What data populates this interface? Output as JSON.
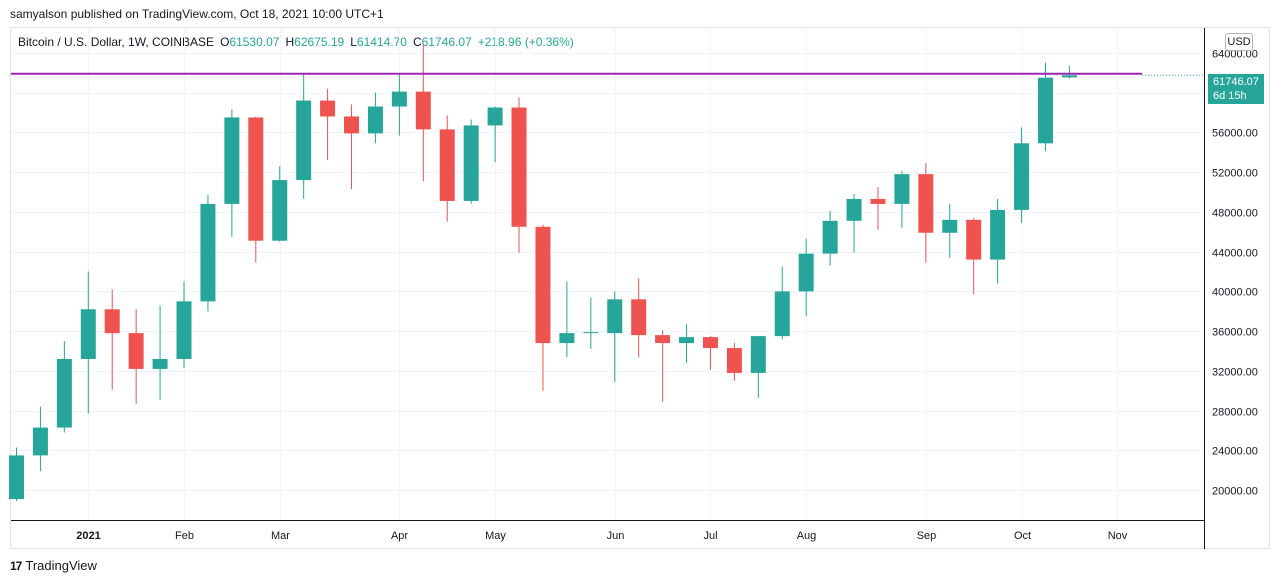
{
  "header": {
    "publisher": "samyalson",
    "caption": "samyalson published on TradingView.com, Oct 18, 2021 10:00 UTC+1"
  },
  "legend": {
    "symbol": "Bitcoin / U.S. Dollar, 1W, COINBASE",
    "open_label": "O",
    "open": "61530.07",
    "high_label": "H",
    "high": "62675.19",
    "low_label": "L",
    "low": "61414.70",
    "close_label": "C",
    "close": "61746.07",
    "change": "+218.96 (+0.36%)"
  },
  "price_axis": {
    "currency": "USD"
  },
  "last_price": {
    "value": "61746.07",
    "countdown": "6d 15h"
  },
  "footer": {
    "brand": "TradingView",
    "logo_glyph": "17"
  },
  "colors": {
    "up": "#26a69a",
    "down": "#ef5350",
    "resistance": "#9c27b0"
  },
  "chart_data": {
    "type": "candlestick",
    "ylim": [
      17000,
      66500
    ],
    "y_ticks": [
      20000,
      24000,
      28000,
      32000,
      36000,
      40000,
      44000,
      48000,
      52000,
      56000,
      60000,
      64000
    ],
    "y_tick_labels": [
      "20000.00",
      "24000.00",
      "28000.00",
      "32000.00",
      "36000.00",
      "40000.00",
      "44000.00",
      "48000.00",
      "52000.00",
      "56000.00",
      "60000.00",
      "64000.00"
    ],
    "x_labels": [
      {
        "label": "2021",
        "index": 3,
        "bold": true
      },
      {
        "label": "Feb",
        "index": 7
      },
      {
        "label": "Mar",
        "index": 11
      },
      {
        "label": "Apr",
        "index": 16
      },
      {
        "label": "May",
        "index": 20
      },
      {
        "label": "Jun",
        "index": 25
      },
      {
        "label": "Jul",
        "index": 29
      },
      {
        "label": "Aug",
        "index": 33
      },
      {
        "label": "Sep",
        "index": 38
      },
      {
        "label": "Oct",
        "index": 42
      },
      {
        "label": "Nov",
        "index": 46
      }
    ],
    "resistance_level": 61900,
    "current_level": 61746.07,
    "candles": [
      {
        "o": 19100,
        "h": 24300,
        "l": 18900,
        "c": 23500
      },
      {
        "o": 23500,
        "h": 28400,
        "l": 21900,
        "c": 26300
      },
      {
        "o": 26300,
        "h": 35000,
        "l": 25800,
        "c": 33200
      },
      {
        "o": 33200,
        "h": 42000,
        "l": 27700,
        "c": 38200
      },
      {
        "o": 38200,
        "h": 40200,
        "l": 30100,
        "c": 35800
      },
      {
        "o": 35800,
        "h": 38200,
        "l": 28700,
        "c": 32200
      },
      {
        "o": 32200,
        "h": 38600,
        "l": 29100,
        "c": 33200
      },
      {
        "o": 33200,
        "h": 41000,
        "l": 32300,
        "c": 39000
      },
      {
        "o": 39000,
        "h": 49700,
        "l": 38000,
        "c": 48800
      },
      {
        "o": 48800,
        "h": 58300,
        "l": 45500,
        "c": 57500
      },
      {
        "o": 57500,
        "h": 57600,
        "l": 42900,
        "c": 45100
      },
      {
        "o": 45100,
        "h": 52600,
        "l": 45000,
        "c": 51200
      },
      {
        "o": 51200,
        "h": 61900,
        "l": 49300,
        "c": 59200
      },
      {
        "o": 59200,
        "h": 60400,
        "l": 53200,
        "c": 57600
      },
      {
        "o": 57600,
        "h": 58800,
        "l": 50300,
        "c": 55900
      },
      {
        "o": 55900,
        "h": 60000,
        "l": 54900,
        "c": 58600
      },
      {
        "o": 58600,
        "h": 61800,
        "l": 55700,
        "c": 60100
      },
      {
        "o": 60100,
        "h": 64900,
        "l": 51100,
        "c": 56300
      },
      {
        "o": 56300,
        "h": 57700,
        "l": 47000,
        "c": 49100
      },
      {
        "o": 49100,
        "h": 57300,
        "l": 48800,
        "c": 56700
      },
      {
        "o": 56700,
        "h": 58600,
        "l": 53000,
        "c": 58500
      },
      {
        "o": 58500,
        "h": 59500,
        "l": 43900,
        "c": 46500
      },
      {
        "o": 46500,
        "h": 46700,
        "l": 30000,
        "c": 34800
      },
      {
        "o": 34800,
        "h": 41000,
        "l": 33400,
        "c": 35800
      },
      {
        "o": 35800,
        "h": 39400,
        "l": 34200,
        "c": 35900
      },
      {
        "o": 35800,
        "h": 40000,
        "l": 30900,
        "c": 39200
      },
      {
        "o": 39200,
        "h": 41300,
        "l": 33400,
        "c": 35600
      },
      {
        "o": 35600,
        "h": 36100,
        "l": 28900,
        "c": 34800
      },
      {
        "o": 34800,
        "h": 36700,
        "l": 32800,
        "c": 35400
      },
      {
        "o": 35400,
        "h": 35500,
        "l": 32100,
        "c": 34300
      },
      {
        "o": 34300,
        "h": 34800,
        "l": 31000,
        "c": 31800
      },
      {
        "o": 31800,
        "h": 35500,
        "l": 29300,
        "c": 35500
      },
      {
        "o": 35500,
        "h": 42500,
        "l": 35200,
        "c": 40000
      },
      {
        "o": 40000,
        "h": 45300,
        "l": 37500,
        "c": 43800
      },
      {
        "o": 43800,
        "h": 48100,
        "l": 42600,
        "c": 47100
      },
      {
        "o": 47100,
        "h": 49800,
        "l": 43900,
        "c": 49300
      },
      {
        "o": 49300,
        "h": 50500,
        "l": 46200,
        "c": 48800
      },
      {
        "o": 48800,
        "h": 52100,
        "l": 46400,
        "c": 51800
      },
      {
        "o": 51800,
        "h": 52900,
        "l": 42900,
        "c": 45900
      },
      {
        "o": 45900,
        "h": 48800,
        "l": 43400,
        "c": 47200
      },
      {
        "o": 47200,
        "h": 47400,
        "l": 39700,
        "c": 43200
      },
      {
        "o": 43200,
        "h": 49300,
        "l": 40800,
        "c": 48200
      },
      {
        "o": 48200,
        "h": 56500,
        "l": 46900,
        "c": 54900
      },
      {
        "o": 54900,
        "h": 63000,
        "l": 54100,
        "c": 61500
      },
      {
        "o": 61530,
        "h": 62675,
        "l": 61415,
        "c": 61746
      }
    ]
  }
}
